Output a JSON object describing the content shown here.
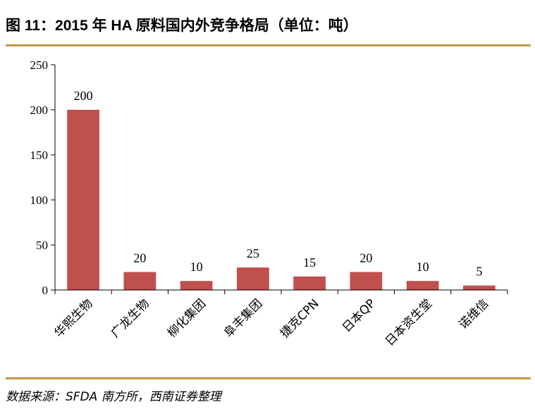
{
  "header": {
    "title": "图 11：2015 年 HA 原料国内外竞争格局（单位：吨）"
  },
  "footer": {
    "source": "数据来源：SFDA 南方所，西南证券整理"
  },
  "colors": {
    "bar": "#c0504d",
    "rule": "#c8964a",
    "axis": "#000000"
  },
  "chart_data": {
    "type": "bar",
    "title": "",
    "xlabel": "",
    "ylabel": "",
    "categories": [
      "华熙生物",
      "广龙生物",
      "柳化集团",
      "阜丰集团",
      "捷克CPN",
      "日本QP",
      "日本资生堂",
      "诺维信"
    ],
    "values": [
      200,
      20,
      10,
      25,
      15,
      20,
      10,
      5
    ],
    "ylim": [
      0,
      250
    ],
    "yticks": [
      0,
      50,
      100,
      150,
      200,
      250
    ],
    "grid": false,
    "legend": "none"
  }
}
